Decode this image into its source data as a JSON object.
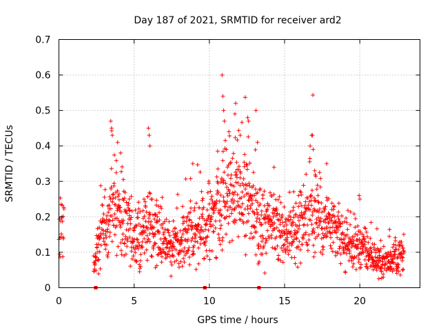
{
  "chart_data": {
    "type": "scatter",
    "title": "Day 187 of 2021, SRMTID for receiver ard2",
    "xlabel": "GPS time / hours",
    "ylabel": "SRMTID / TECUs",
    "xlim": [
      0,
      24
    ],
    "ylim": [
      0,
      0.7
    ],
    "xticks": [
      0,
      5,
      10,
      15,
      20
    ],
    "xtick_labels": [
      "0",
      "5",
      "10",
      "15",
      "20"
    ],
    "yticks": [
      0,
      0.1,
      0.2,
      0.3,
      0.4,
      0.5,
      0.6,
      0.7
    ],
    "ytick_labels": [
      "0",
      "0.1",
      "0.2",
      "0.3",
      "0.4",
      "0.5",
      "0.6",
      "0.7"
    ],
    "grid": true,
    "color": "#ff0000",
    "marker": "+",
    "series": [
      {
        "name": "SRMTID",
        "trend": [
          [
            0.0,
            0.14
          ],
          [
            0.3,
            0.18
          ],
          [
            2.4,
            0.08
          ],
          [
            2.8,
            0.19
          ],
          [
            3.3,
            0.17
          ],
          [
            3.6,
            0.24
          ],
          [
            4.0,
            0.22
          ],
          [
            4.5,
            0.18
          ],
          [
            5.0,
            0.14
          ],
          [
            5.5,
            0.15
          ],
          [
            6.0,
            0.19
          ],
          [
            6.5,
            0.15
          ],
          [
            7.0,
            0.13
          ],
          [
            7.5,
            0.14
          ],
          [
            8.0,
            0.13
          ],
          [
            8.5,
            0.15
          ],
          [
            9.0,
            0.16
          ],
          [
            9.5,
            0.16
          ],
          [
            10.0,
            0.17
          ],
          [
            10.5,
            0.21
          ],
          [
            11.0,
            0.26
          ],
          [
            11.5,
            0.28
          ],
          [
            12.0,
            0.28
          ],
          [
            12.5,
            0.25
          ],
          [
            13.0,
            0.19
          ],
          [
            13.5,
            0.16
          ],
          [
            14.0,
            0.17
          ],
          [
            14.5,
            0.17
          ],
          [
            15.0,
            0.15
          ],
          [
            15.5,
            0.16
          ],
          [
            16.0,
            0.18
          ],
          [
            16.5,
            0.21
          ],
          [
            17.0,
            0.22
          ],
          [
            17.5,
            0.2
          ],
          [
            18.0,
            0.17
          ],
          [
            18.5,
            0.15
          ],
          [
            19.0,
            0.12
          ],
          [
            19.5,
            0.11
          ],
          [
            20.0,
            0.12
          ],
          [
            20.5,
            0.1
          ],
          [
            21.0,
            0.08
          ],
          [
            21.5,
            0.07
          ],
          [
            22.0,
            0.08
          ],
          [
            22.5,
            0.09
          ],
          [
            22.9,
            0.09
          ]
        ],
        "outliers": [
          [
            3.45,
            0.47
          ],
          [
            3.5,
            0.45
          ],
          [
            3.55,
            0.43
          ],
          [
            3.9,
            0.41
          ],
          [
            4.1,
            0.38
          ],
          [
            5.95,
            0.45
          ],
          [
            6.0,
            0.43
          ],
          [
            6.05,
            0.4
          ],
          [
            8.9,
            0.35
          ],
          [
            10.85,
            0.6
          ],
          [
            10.9,
            0.54
          ],
          [
            10.95,
            0.5
          ],
          [
            11.0,
            0.47
          ],
          [
            11.3,
            0.44
          ],
          [
            11.7,
            0.49
          ],
          [
            11.75,
            0.52
          ],
          [
            12.05,
            0.43
          ],
          [
            12.55,
            0.48
          ],
          [
            12.6,
            0.47
          ],
          [
            13.1,
            0.5
          ],
          [
            13.2,
            0.41
          ],
          [
            14.3,
            0.34
          ],
          [
            16.8,
            0.43
          ],
          [
            16.85,
            0.43
          ],
          [
            16.9,
            0.39
          ],
          [
            17.0,
            0.33
          ],
          [
            17.8,
            0.35
          ],
          [
            19.95,
            0.26
          ],
          [
            20.0,
            0.25
          ]
        ],
        "zeros": [
          2.45,
          9.7,
          13.3
        ]
      }
    ]
  }
}
